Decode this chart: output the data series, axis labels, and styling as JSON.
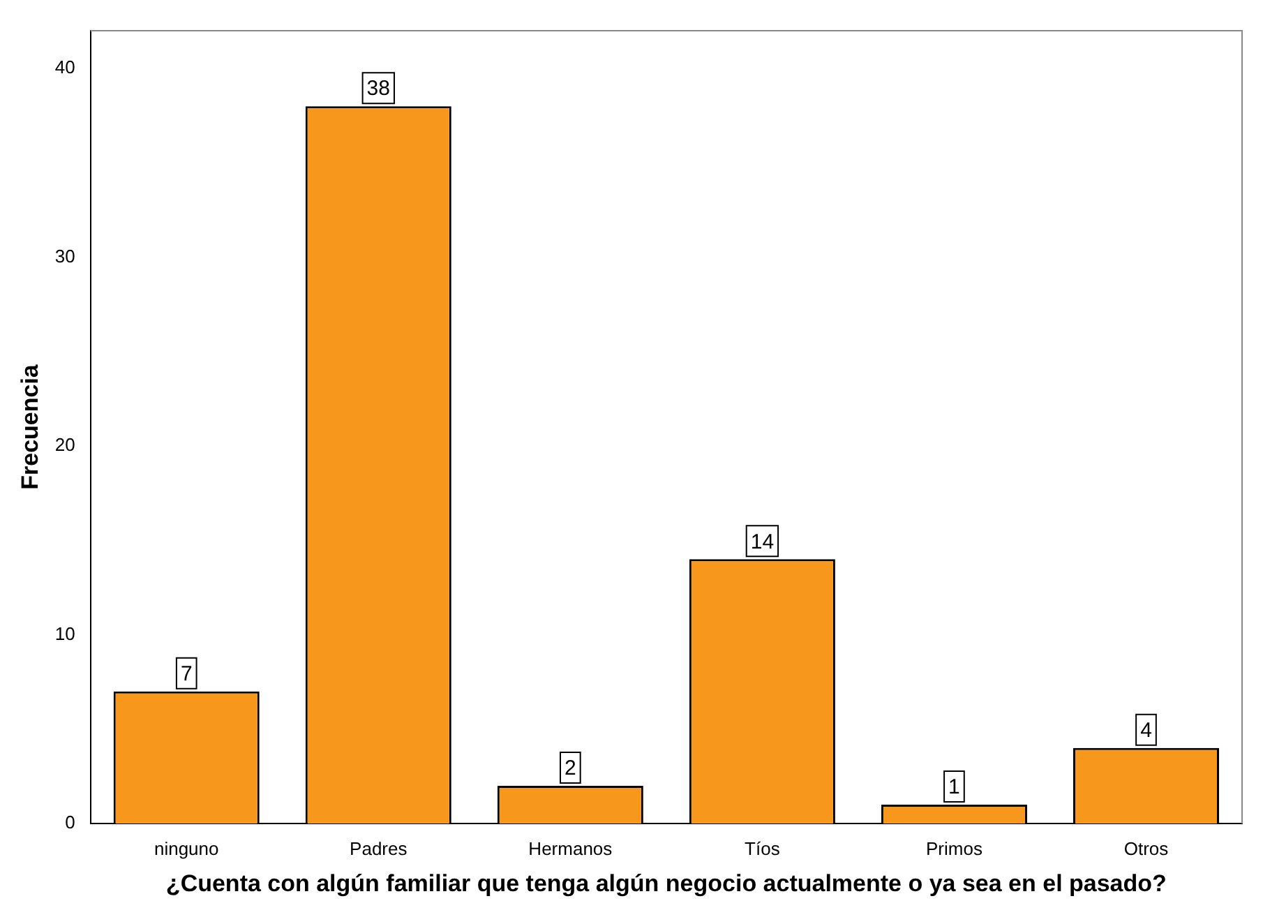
{
  "chart_data": {
    "type": "bar",
    "xlabel": "¿Cuenta con algún familiar que tenga algún negocio actualmente o ya sea en el pasado?",
    "ylabel": "Frecuencia",
    "categories": [
      "ninguno",
      "Padres",
      "Hermanos",
      "Tíos",
      "Primos",
      "Otros"
    ],
    "values": [
      7,
      38,
      2,
      14,
      1,
      4
    ],
    "color": "#f7981d",
    "ylim": [
      0,
      42
    ],
    "yticks": [
      0,
      10,
      20,
      30,
      40
    ],
    "grid": false,
    "legend": false,
    "data_labels": true
  }
}
